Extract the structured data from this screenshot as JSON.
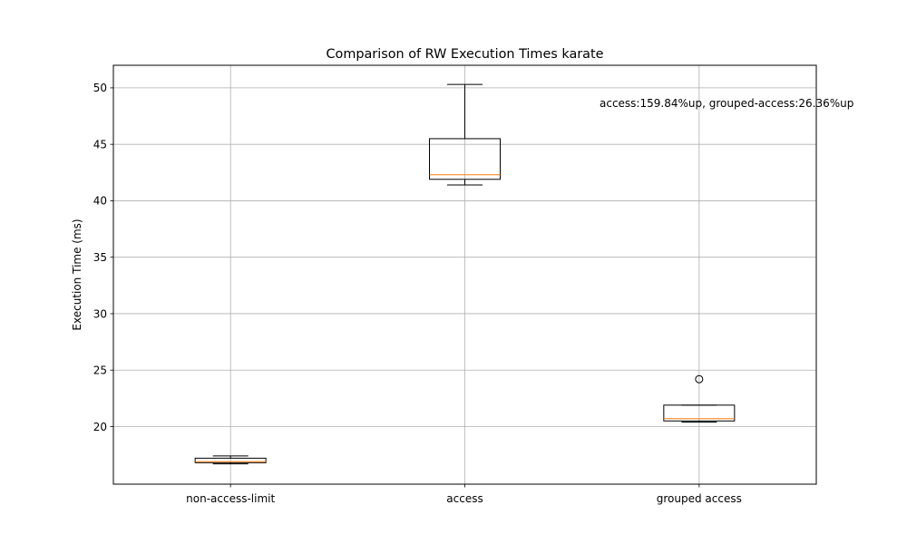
{
  "chart_data": {
    "type": "box",
    "title": "Comparison of RW Execution Times karate",
    "xlabel": "",
    "ylabel": "Execution Time (ms)",
    "ylim": [
      14.9,
      52.0
    ],
    "yticks": [
      20,
      25,
      30,
      35,
      40,
      45,
      50
    ],
    "grid": true,
    "categories": [
      "non-access-limit",
      "access",
      "grouped access"
    ],
    "boxes": [
      {
        "category": "non-access-limit",
        "whisker_low": 16.7,
        "q1": 16.8,
        "median": 16.9,
        "q3": 17.2,
        "whisker_high": 17.4,
        "outliers": []
      },
      {
        "category": "access",
        "whisker_low": 41.4,
        "q1": 41.9,
        "median": 42.3,
        "q3": 45.5,
        "whisker_high": 50.3,
        "outliers": []
      },
      {
        "category": "grouped access",
        "whisker_low": 20.4,
        "q1": 20.5,
        "median": 20.7,
        "q3": 21.9,
        "whisker_high": 21.9,
        "outliers": [
          24.2
        ]
      }
    ],
    "annotation": "access:159.84%up, grouped-access:26.36%up",
    "colors": {
      "box": "#000000",
      "median": "#ff7f0e",
      "grid": "#b0b0b0"
    }
  }
}
